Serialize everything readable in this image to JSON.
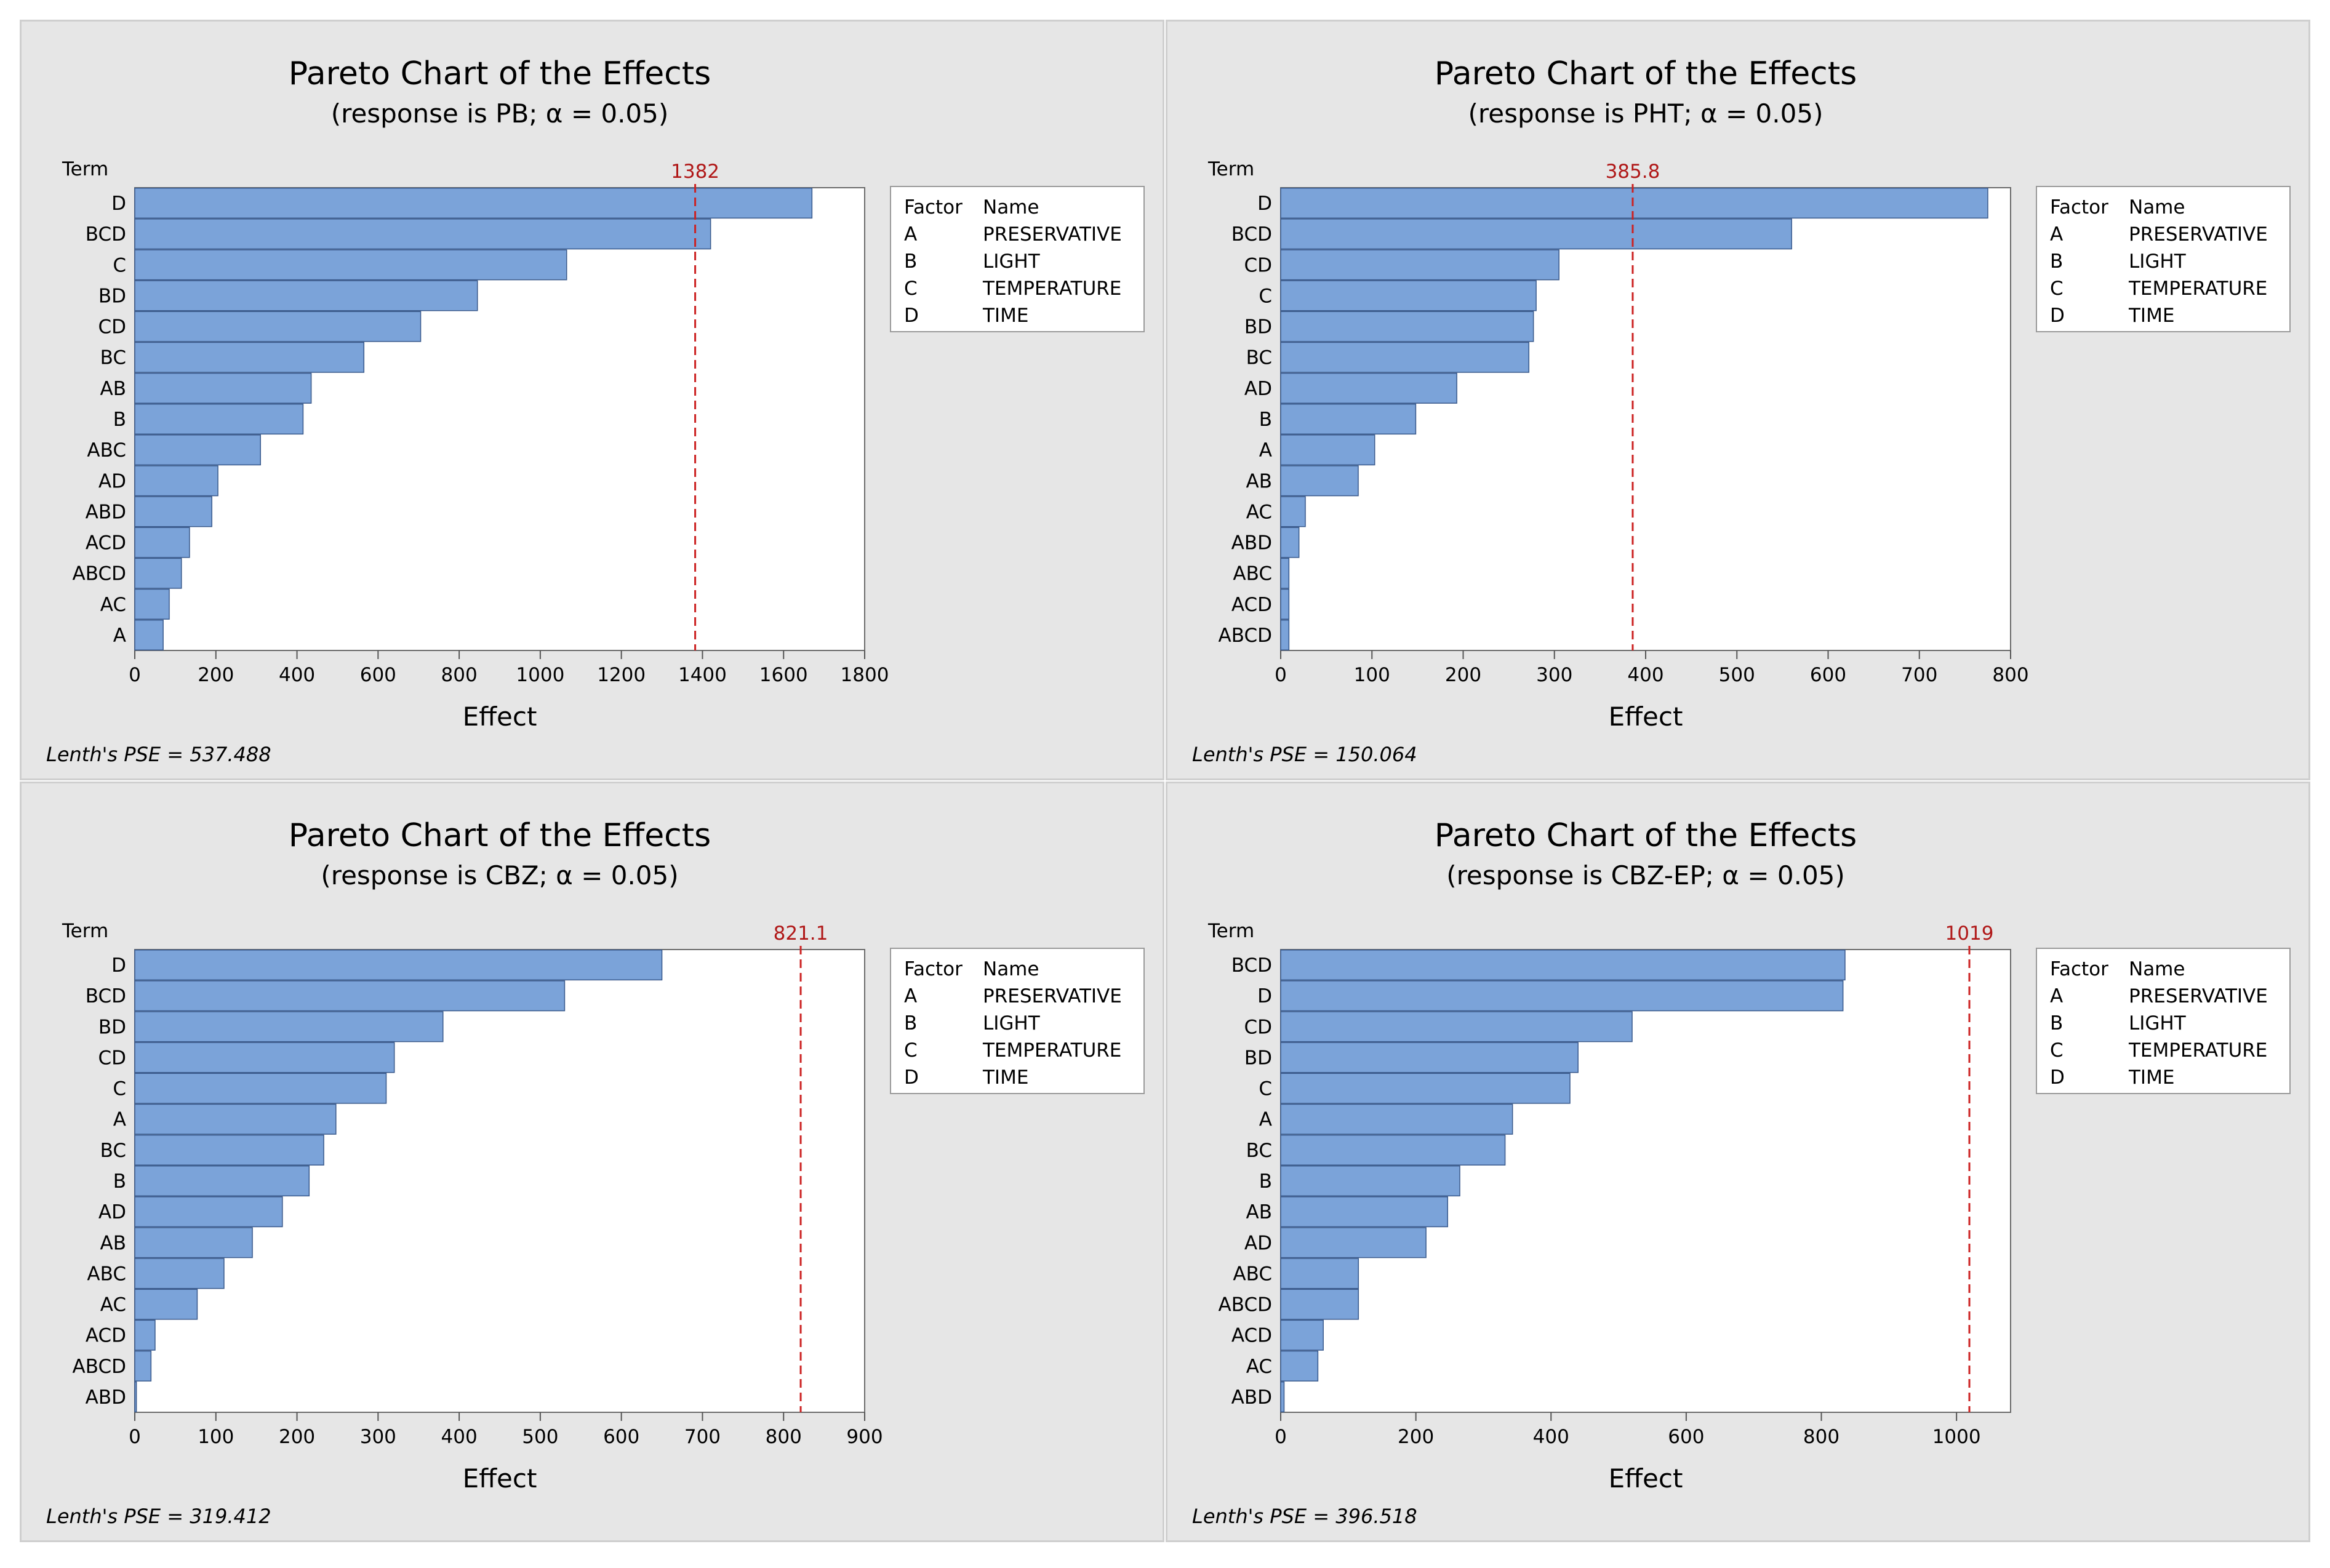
{
  "colors": {
    "bar_fill": "#7ba3d9",
    "bar_stroke": "#3a5a8c",
    "reference_line": "#cc2222",
    "panel_bg": "#e6e6e6",
    "plot_bg": "#ffffff"
  },
  "legend": {
    "header_factor": "Factor",
    "header_name": "Name",
    "rows": [
      {
        "factor": "A",
        "name": "PRESERVATIVE"
      },
      {
        "factor": "B",
        "name": "LIGHT"
      },
      {
        "factor": "C",
        "name": "TEMPERATURE"
      },
      {
        "factor": "D",
        "name": "TIME"
      }
    ]
  },
  "chart_data": [
    {
      "type": "bar",
      "orientation": "horizontal",
      "title": "Pareto Chart of the Effects",
      "subtitle": "(response is PB; α = 0.05)",
      "ylabel": "Term",
      "xlabel": "Effect",
      "terms": [
        "D",
        "BCD",
        "C",
        "BD",
        "CD",
        "BC",
        "AB",
        "B",
        "ABC",
        "AD",
        "ABD",
        "ACD",
        "ABCD",
        "AC",
        "A"
      ],
      "values": [
        1670,
        1420,
        1065,
        845,
        705,
        565,
        435,
        415,
        310,
        205,
        190,
        135,
        115,
        85,
        70
      ],
      "xlim": [
        0,
        1800
      ],
      "xticks": [
        0,
        200,
        400,
        600,
        800,
        1000,
        1200,
        1400,
        1600,
        1800
      ],
      "reference_value": 1382,
      "reference_label": "1382",
      "footnote": "Lenth's PSE = 537.488"
    },
    {
      "type": "bar",
      "orientation": "horizontal",
      "title": "Pareto Chart of the Effects",
      "subtitle": "(response is PHT; α = 0.05)",
      "ylabel": "Term",
      "xlabel": "Effect",
      "terms": [
        "D",
        "BCD",
        "CD",
        "C",
        "BD",
        "BC",
        "AD",
        "B",
        "A",
        "AB",
        "AC",
        "ABD",
        "ABC",
        "ACD",
        "ABCD"
      ],
      "values": [
        775,
        560,
        305,
        280,
        277,
        272,
        193,
        148,
        103,
        85,
        27,
        20,
        9,
        9,
        9
      ],
      "xlim": [
        0,
        800
      ],
      "xticks": [
        0,
        100,
        200,
        300,
        400,
        500,
        600,
        700,
        800
      ],
      "reference_value": 385.8,
      "reference_label": "385.8",
      "footnote": "Lenth's PSE = 150.064"
    },
    {
      "type": "bar",
      "orientation": "horizontal",
      "title": "Pareto Chart of the Effects",
      "subtitle": "(response is CBZ; α = 0.05)",
      "ylabel": "Term",
      "xlabel": "Effect",
      "terms": [
        "D",
        "BCD",
        "BD",
        "CD",
        "C",
        "A",
        "BC",
        "B",
        "AD",
        "AB",
        "ABC",
        "AC",
        "ACD",
        "ABCD",
        "ABD"
      ],
      "values": [
        650,
        530,
        380,
        320,
        310,
        248,
        233,
        215,
        182,
        145,
        110,
        77,
        25,
        20,
        2
      ],
      "xlim": [
        0,
        900
      ],
      "xticks": [
        0,
        100,
        200,
        300,
        400,
        500,
        600,
        700,
        800,
        900
      ],
      "reference_value": 821.1,
      "reference_label": "821.1",
      "footnote": "Lenth's PSE = 319.412"
    },
    {
      "type": "bar",
      "orientation": "horizontal",
      "title": "Pareto Chart of the Effects",
      "subtitle": "(response is CBZ-EP; α = 0.05)",
      "ylabel": "Term",
      "xlabel": "Effect",
      "terms": [
        "BCD",
        "D",
        "CD",
        "BD",
        "C",
        "A",
        "BC",
        "B",
        "AB",
        "AD",
        "ABC",
        "ABCD",
        "ACD",
        "AC",
        "ABD"
      ],
      "values": [
        835,
        832,
        520,
        440,
        428,
        343,
        332,
        265,
        247,
        215,
        115,
        115,
        63,
        55,
        5
      ],
      "xlim": [
        0,
        1080
      ],
      "xticks": [
        0,
        200,
        400,
        600,
        800,
        1000
      ],
      "reference_value": 1019,
      "reference_label": "1019",
      "footnote": "Lenth's PSE = 396.518"
    }
  ]
}
